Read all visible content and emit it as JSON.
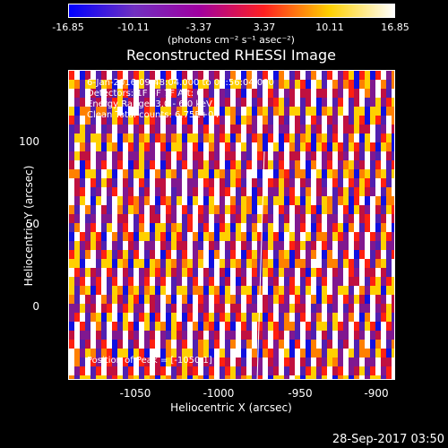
{
  "colorbar": {
    "ticks": [
      "-16.85",
      "-10.11",
      "-3.37",
      "3.37",
      "10.11",
      "16.85"
    ],
    "units": "(photons cm⁻² s⁻¹ asec⁻²)",
    "colors": [
      "#0000ff",
      "#7030c0",
      "#a000a0",
      "#ff2020",
      "#ffd000",
      "#ffffff"
    ]
  },
  "title": "Reconstructed RHESSI Image",
  "info": {
    "time": "6-Jan-2016 09:48:04.000 to 09:56:04.000",
    "detectors": "Detectors: 1F 5F 7F  Att: 0",
    "energy": "Energy Range: 3.0 - 6.0 keV",
    "clean": "Clean    Total counts: 6.75E+04",
    "peak": "Position of Peak = [-1050,1]"
  },
  "axes": {
    "xlabel": "Heliocentric X (arcsec)",
    "ylabel": "Heliocentric Y (arcsec)",
    "xticks": [
      "-1050",
      "-1000",
      "-950",
      "-900"
    ],
    "yticks": [
      "100",
      "50",
      "0"
    ]
  },
  "timestamp": "28-Sep-2017 03:50"
}
